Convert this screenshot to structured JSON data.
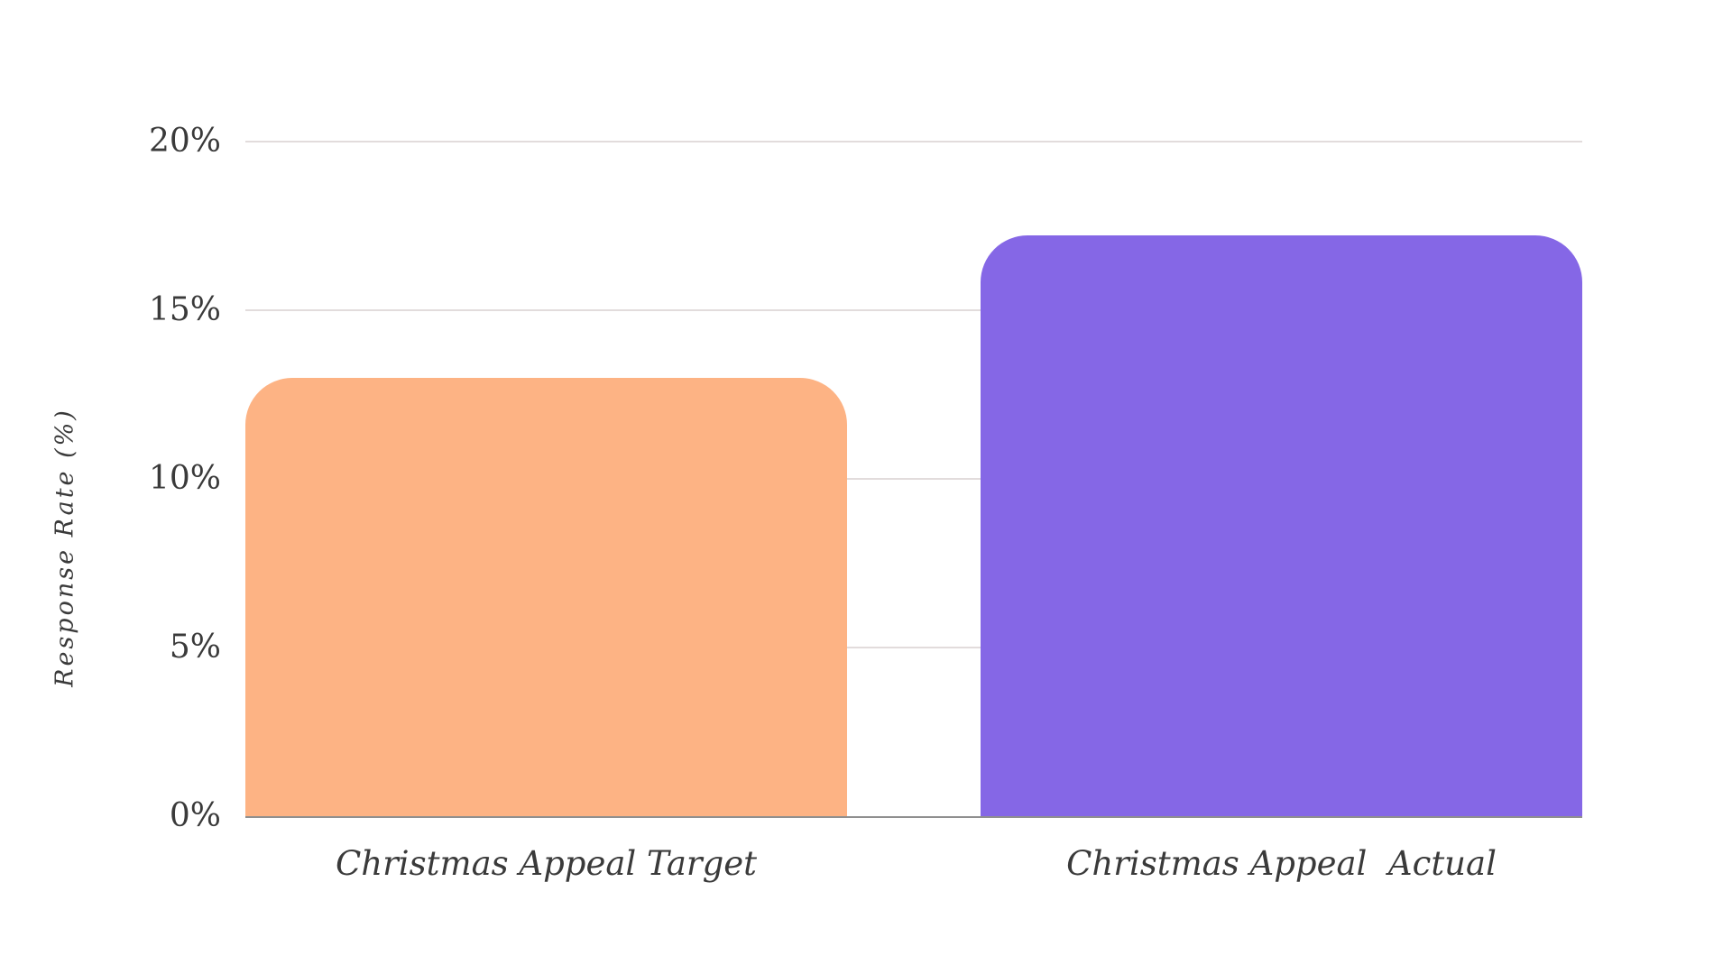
{
  "chart_data": {
    "type": "bar",
    "title": "",
    "categories": [
      "Christmas Appeal Target",
      "Christmas Appeal  Actual"
    ],
    "values": [
      13.0,
      17.2
    ],
    "colors": [
      "#fdb384",
      "#8567e6"
    ],
    "xlabel": "",
    "ylabel": "Response Rate (%)",
    "ylim": [
      0,
      20
    ],
    "yticks": [
      "0%",
      "5%",
      "10%",
      "15%",
      "20%"
    ],
    "grid": true,
    "legend": null
  }
}
